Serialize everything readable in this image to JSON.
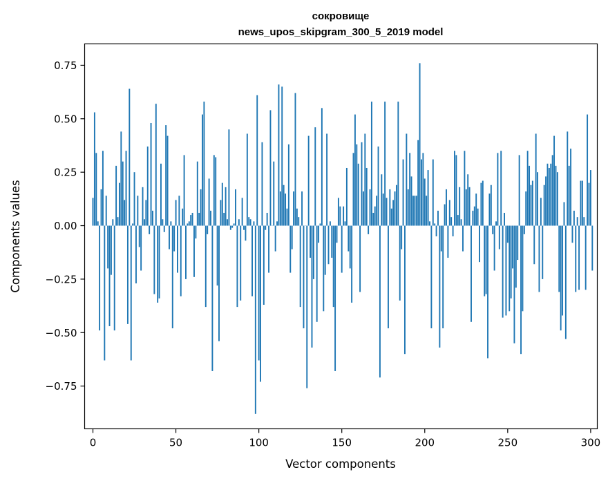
{
  "chart_data": {
    "type": "bar",
    "title": "сокровище",
    "subtitle": "news_upos_skipgram_300_5_2019 model",
    "xlabel": "Vector components",
    "ylabel": "Components values",
    "xlim": [
      -5,
      304
    ],
    "ylim": [
      -0.95,
      0.85
    ],
    "xticks": [
      0,
      50,
      100,
      150,
      200,
      250,
      300
    ],
    "yticks": [
      -0.75,
      -0.5,
      -0.25,
      0.0,
      0.25,
      0.5,
      0.75
    ],
    "xtick_labels": [
      "0",
      "50",
      "100",
      "150",
      "200",
      "250",
      "300"
    ],
    "ytick_labels": [
      "−0.75",
      "−0.50",
      "−0.25",
      "0.00",
      "0.25",
      "0.50",
      "0.75"
    ],
    "grid": false,
    "legend": "none",
    "bar_color": "#1f77b4",
    "values": [
      0.13,
      0.53,
      0.34,
      0.02,
      -0.49,
      0.17,
      0.35,
      -0.63,
      0.14,
      -0.2,
      -0.47,
      -0.23,
      0.03,
      -0.49,
      0.28,
      0.04,
      0.2,
      0.44,
      0.3,
      0.12,
      0.35,
      -0.46,
      0.64,
      -0.63,
      0.01,
      0.25,
      -0.27,
      0.14,
      -0.1,
      -0.21,
      0.18,
      0.03,
      0.12,
      0.37,
      -0.04,
      0.48,
      0.07,
      -0.32,
      0.57,
      -0.36,
      -0.34,
      0.29,
      0.03,
      -0.03,
      0.47,
      0.42,
      -0.11,
      0.02,
      -0.48,
      -0.12,
      0.12,
      -0.22,
      0.14,
      -0.33,
      0.08,
      0.33,
      -0.25,
      0.01,
      0.02,
      0.05,
      0.06,
      -0.24,
      -0.06,
      0.3,
      0.06,
      0.17,
      0.52,
      0.58,
      -0.38,
      -0.04,
      0.22,
      0.07,
      -0.68,
      0.33,
      0.32,
      -0.28,
      -0.54,
      0.12,
      0.2,
      0.06,
      0.18,
      0.03,
      0.45,
      -0.02,
      -0.01,
      0.01,
      0.17,
      -0.38,
      0.03,
      -0.35,
      0.13,
      -0.02,
      -0.07,
      0.43,
      0.04,
      0.03,
      -0.33,
      0.02,
      -0.88,
      0.61,
      -0.63,
      -0.73,
      0.39,
      -0.37,
      -0.02,
      0.06,
      -0.22,
      0.54,
      0.0,
      0.3,
      -0.12,
      0.02,
      0.66,
      0.16,
      0.65,
      0.19,
      0.15,
      0.08,
      0.38,
      -0.22,
      -0.11,
      0.16,
      0.62,
      0.08,
      0.04,
      -0.38,
      0.16,
      -0.48,
      0.0,
      -0.76,
      0.42,
      -0.15,
      -0.57,
      -0.25,
      0.46,
      -0.45,
      -0.08,
      0.01,
      0.55,
      -0.4,
      -0.23,
      0.43,
      -0.18,
      0.02,
      -0.15,
      -0.38,
      -0.68,
      -0.08,
      0.13,
      0.09,
      -0.22,
      0.09,
      0.02,
      0.27,
      -0.12,
      -0.2,
      -0.36,
      0.34,
      0.52,
      0.38,
      0.29,
      -0.31,
      0.39,
      0.16,
      0.43,
      0.27,
      -0.04,
      0.17,
      0.58,
      0.06,
      0.09,
      0.14,
      0.37,
      -0.71,
      0.24,
      0.15,
      0.58,
      0.13,
      -0.48,
      0.17,
      0.08,
      0.12,
      0.16,
      0.19,
      0.58,
      -0.35,
      -0.11,
      0.31,
      -0.6,
      0.43,
      0.17,
      0.34,
      0.23,
      0.14,
      0.14,
      0.14,
      0.4,
      0.76,
      0.31,
      0.34,
      0.22,
      0.14,
      0.26,
      0.02,
      -0.48,
      0.31,
      0.01,
      -0.05,
      0.07,
      -0.57,
      -0.12,
      -0.48,
      0.1,
      0.17,
      -0.15,
      0.12,
      0.04,
      -0.05,
      0.35,
      0.33,
      0.05,
      0.18,
      0.03,
      -0.12,
      0.35,
      0.17,
      0.24,
      0.18,
      -0.45,
      0.07,
      0.09,
      0.15,
      0.08,
      -0.17,
      0.2,
      0.21,
      -0.33,
      -0.32,
      -0.62,
      0.15,
      0.19,
      -0.04,
      -0.21,
      0.02,
      0.34,
      -0.11,
      0.35,
      -0.43,
      0.06,
      -0.42,
      -0.08,
      -0.4,
      -0.34,
      -0.2,
      -0.55,
      -0.29,
      -0.16,
      0.33,
      -0.6,
      -0.4,
      -0.04,
      0.16,
      0.35,
      0.28,
      0.19,
      0.21,
      -0.18,
      0.43,
      0.25,
      -0.31,
      0.13,
      -0.25,
      0.19,
      0.23,
      0.29,
      0.27,
      0.29,
      0.33,
      0.42,
      0.28,
      0.25,
      -0.31,
      -0.49,
      -0.42,
      0.11,
      -0.53,
      0.44,
      0.28,
      0.36,
      -0.08,
      0.07,
      -0.31,
      0.04,
      -0.3,
      0.21,
      0.21,
      0.04,
      -0.3,
      0.52,
      0.2,
      0.26,
      -0.21
    ]
  }
}
